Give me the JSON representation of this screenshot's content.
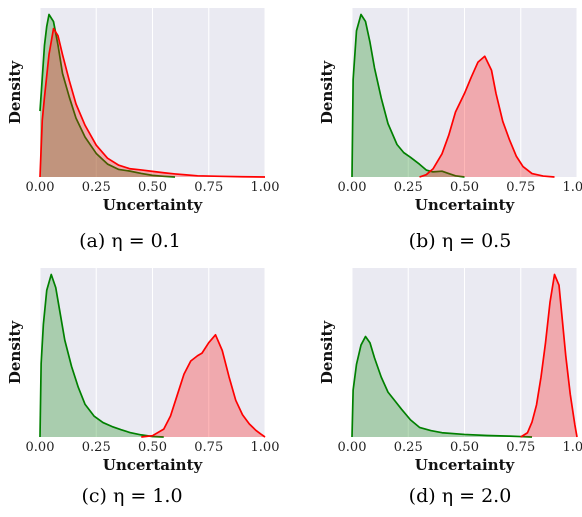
{
  "chart_data": [
    {
      "type": "area",
      "caption": "(a) η = 0.1",
      "xlabel": "Uncertainty",
      "ylabel": "Density",
      "xlim": [
        0,
        1
      ],
      "xticks": [
        "0.00",
        "0.25",
        "0.50",
        "0.75",
        "1.00"
      ],
      "grid": true,
      "series": [
        {
          "color": "#008000",
          "x": [
            0,
            0.01,
            0.02,
            0.03,
            0.04,
            0.06,
            0.08,
            0.1,
            0.13,
            0.16,
            0.2,
            0.25,
            0.3,
            0.35,
            0.4,
            0.45,
            0.5,
            0.55,
            0.6
          ],
          "y": [
            2.8,
            4.2,
            5.6,
            6.4,
            6.9,
            6.6,
            5.6,
            4.4,
            3.4,
            2.5,
            1.7,
            1.0,
            0.55,
            0.32,
            0.25,
            0.15,
            0.07,
            0.03,
            0.0
          ]
        },
        {
          "color": "#ff0000",
          "x": [
            0,
            0.01,
            0.02,
            0.04,
            0.06,
            0.08,
            0.1,
            0.13,
            0.16,
            0.2,
            0.25,
            0.3,
            0.35,
            0.4,
            0.45,
            0.5,
            0.55,
            0.6,
            0.65,
            0.7,
            0.8,
            0.9,
            1.0
          ],
          "y": [
            0.0,
            2.4,
            3.4,
            5.2,
            6.3,
            6.0,
            5.2,
            4.1,
            3.1,
            2.2,
            1.35,
            0.8,
            0.5,
            0.35,
            0.3,
            0.24,
            0.18,
            0.13,
            0.09,
            0.05,
            0.03,
            0.01,
            0.0
          ]
        }
      ]
    },
    {
      "type": "area",
      "caption": "(b) η = 0.5",
      "xlabel": "Uncertainty",
      "ylabel": "Density",
      "xlim": [
        0,
        1
      ],
      "xticks": [
        "0.00",
        "0.25",
        "0.50",
        "0.75",
        "1.00"
      ],
      "grid": true,
      "series": [
        {
          "color": "#008000",
          "x": [
            0,
            0.005,
            0.02,
            0.04,
            0.06,
            0.08,
            0.1,
            0.13,
            0.16,
            0.2,
            0.23,
            0.26,
            0.3,
            0.33,
            0.36,
            0.4,
            0.43,
            0.46,
            0.5
          ],
          "y": [
            0.0,
            4.2,
            6.3,
            7.0,
            6.7,
            5.8,
            4.7,
            3.4,
            2.3,
            1.4,
            1.05,
            0.85,
            0.55,
            0.3,
            0.22,
            0.25,
            0.15,
            0.05,
            0.0
          ]
        },
        {
          "color": "#ff0000",
          "x": [
            0.3,
            0.33,
            0.36,
            0.4,
            0.43,
            0.46,
            0.5,
            0.53,
            0.56,
            0.59,
            0.62,
            0.64,
            0.67,
            0.7,
            0.73,
            0.76,
            0.8,
            0.85,
            0.9
          ],
          "y": [
            0.0,
            0.1,
            0.35,
            1.0,
            1.8,
            2.8,
            3.6,
            4.3,
            4.95,
            5.2,
            4.6,
            3.6,
            2.4,
            1.6,
            0.9,
            0.45,
            0.15,
            0.04,
            0.0
          ]
        }
      ]
    },
    {
      "type": "area",
      "caption": "(c) η = 1.0",
      "xlabel": "Uncertainty",
      "ylabel": "Density",
      "xlim": [
        0,
        1
      ],
      "xticks": [
        "0.00",
        "0.25",
        "0.50",
        "0.75",
        "1.00"
      ],
      "grid": true,
      "series": [
        {
          "color": "#008000",
          "x": [
            0,
            0.005,
            0.015,
            0.03,
            0.05,
            0.07,
            0.09,
            0.11,
            0.14,
            0.17,
            0.2,
            0.24,
            0.28,
            0.32,
            0.36,
            0.4,
            0.45,
            0.5,
            0.55
          ],
          "y": [
            0.0,
            2.8,
            4.3,
            5.6,
            6.2,
            5.7,
            4.7,
            3.7,
            2.7,
            1.9,
            1.25,
            0.8,
            0.55,
            0.4,
            0.28,
            0.17,
            0.08,
            0.02,
            0.0
          ]
        },
        {
          "color": "#ff0000",
          "x": [
            0.45,
            0.5,
            0.55,
            0.58,
            0.61,
            0.64,
            0.67,
            0.7,
            0.72,
            0.75,
            0.78,
            0.81,
            0.84,
            0.87,
            0.9,
            0.93,
            0.96,
            0.98,
            1.0
          ],
          "y": [
            0.0,
            0.05,
            0.3,
            0.8,
            1.6,
            2.4,
            2.9,
            3.1,
            3.2,
            3.6,
            3.9,
            3.3,
            2.3,
            1.4,
            0.85,
            0.5,
            0.25,
            0.12,
            0.0
          ]
        }
      ]
    },
    {
      "type": "area",
      "caption": "(d) η = 2.0",
      "xlabel": "Uncertainty",
      "ylabel": "Density",
      "xlim": [
        0,
        1
      ],
      "xticks": [
        "0.00",
        "0.25",
        "0.50",
        "0.75",
        "1.00"
      ],
      "grid": true,
      "series": [
        {
          "color": "#008000",
          "x": [
            0,
            0.005,
            0.02,
            0.04,
            0.06,
            0.08,
            0.1,
            0.13,
            0.16,
            0.19,
            0.22,
            0.26,
            0.3,
            0.35,
            0.4,
            0.5,
            0.6,
            0.7,
            0.75,
            0.8
          ],
          "y": [
            0.0,
            2.2,
            3.4,
            4.3,
            4.7,
            4.4,
            3.7,
            2.8,
            2.1,
            1.7,
            1.3,
            0.8,
            0.45,
            0.3,
            0.2,
            0.12,
            0.07,
            0.04,
            0.02,
            0.0
          ]
        },
        {
          "color": "#ff0000",
          "x": [
            0.75,
            0.78,
            0.8,
            0.82,
            0.84,
            0.86,
            0.88,
            0.9,
            0.92,
            0.93,
            0.95,
            0.97,
            0.99,
            1.0
          ],
          "y": [
            0.0,
            0.2,
            0.7,
            1.5,
            2.8,
            4.4,
            6.3,
            7.6,
            7.1,
            6.0,
            3.8,
            2.0,
            0.6,
            0.0
          ]
        }
      ]
    }
  ]
}
